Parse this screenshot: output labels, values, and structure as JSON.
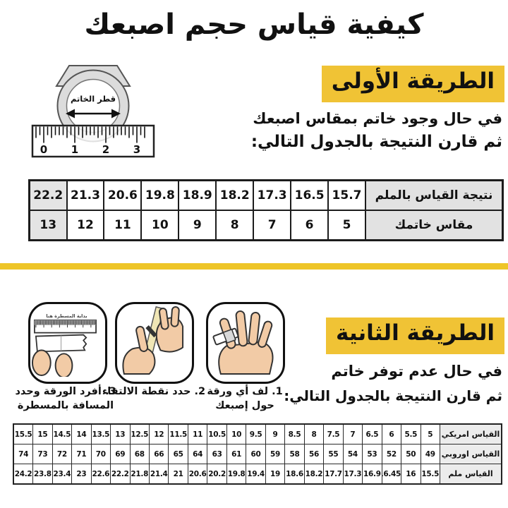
{
  "title": "كيفية قياس حجم اصبعك",
  "colors": {
    "accent_yellow": "#F0C335",
    "divider_yellow": "#EEC528",
    "table_header_gray": "#e2e2e2"
  },
  "method1": {
    "heading": "الطريقة الأولى",
    "line1": "في حال وجود خاتم بمقاس اصبعك",
    "line2": "ثم قارن النتيجة بالجدول التالي:",
    "ring_diagram": {
      "label": "قطر الخاتم",
      "ruler_numbers": [
        "0",
        "1",
        "2",
        "3"
      ]
    },
    "table": {
      "rows": [
        {
          "header": "نتيجة القياس بالملم",
          "values": [
            "15.7",
            "16.5",
            "17.3",
            "18.2",
            "18.9",
            "19.8",
            "20.6",
            "21.3",
            "22.2"
          ]
        },
        {
          "header": "مقاس خاتمك",
          "values": [
            "5",
            "6",
            "7",
            "8",
            "9",
            "10",
            "11",
            "12",
            "13"
          ]
        }
      ]
    }
  },
  "method2": {
    "heading": "الطريقة الثانية",
    "line1": "في حال عدم توفر خاتم",
    "line2": "ثم قارن النتيجة بالجدول التالي:",
    "steps": [
      {
        "caption": "1. لف أي ورقة حول إصبعك"
      },
      {
        "caption": "2. حدد نقطة الالتقاء"
      },
      {
        "caption": "3. أفرد الورقة وحدد المسافة بالمسطرة",
        "ruler_note": "بداية المسطرة هنا"
      }
    ],
    "table": {
      "rows": [
        {
          "header": "القياس امريكي",
          "values": [
            "5",
            "5.5",
            "6",
            "6.5",
            "7",
            "7.5",
            "8",
            "8.5",
            "9",
            "9.5",
            "10",
            "10.5",
            "11",
            "11.5",
            "12",
            "12.5",
            "13",
            "13.5",
            "14",
            "14.5",
            "15",
            "15.5"
          ]
        },
        {
          "header": "القياس اوروبي",
          "values": [
            "49",
            "50",
            "52",
            "53",
            "54",
            "55",
            "56",
            "58",
            "59",
            "60",
            "61",
            "63",
            "64",
            "65",
            "66",
            "68",
            "69",
            "70",
            "71",
            "72",
            "73",
            "74"
          ]
        },
        {
          "header": "القياس ملم",
          "values": [
            "15.5",
            "16",
            "16.45",
            "16.9",
            "17.3",
            "17.7",
            "18.2",
            "18.6",
            "19",
            "19.4",
            "19.8",
            "20.2",
            "20.6",
            "21",
            "21.4",
            "21.8",
            "22.2",
            "22.6",
            "23",
            "23.4",
            "23.8",
            "24.2"
          ]
        }
      ]
    }
  }
}
